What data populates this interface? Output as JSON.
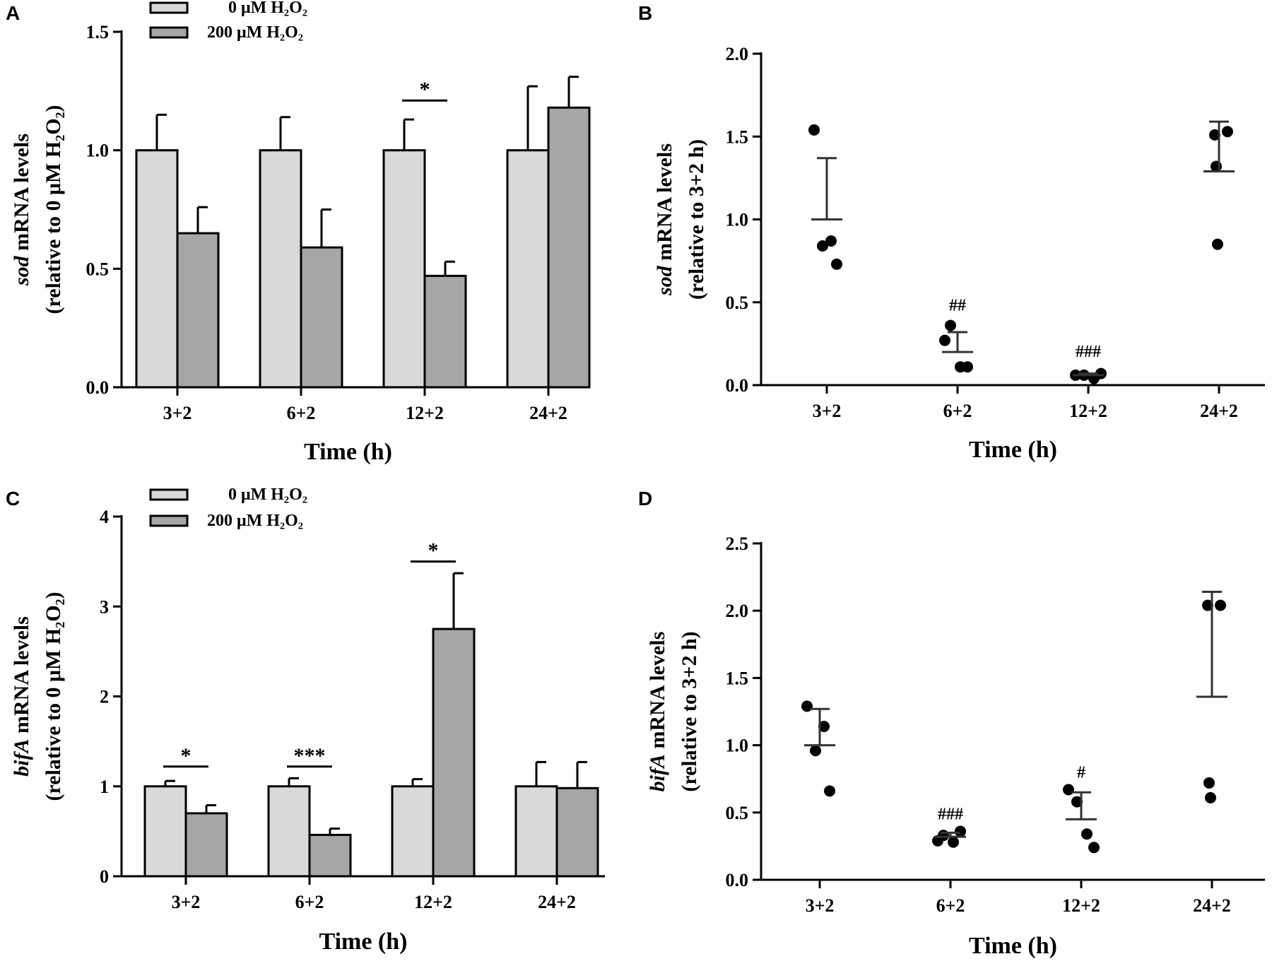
{
  "colors": {
    "control_bar": "#d9d9d9",
    "treated_bar": "#a6a6a8",
    "axis": "#000000",
    "dot": "#000000",
    "errorbar_sd": "#333333"
  },
  "chart_data": [
    {
      "panel": "A",
      "type": "bar",
      "gene": "sod",
      "ylabel_suffix": " mRNA levels",
      "ylabel_line2": "(relative to 0 μM H₂O₂)",
      "xlabel": "Time (h)",
      "categories": [
        "3+2",
        "6+2",
        "12+2",
        "24+2"
      ],
      "ylim": [
        0,
        1.5
      ],
      "yticks": [
        "0.0",
        "0.5",
        "1.0",
        "1.5"
      ],
      "ytick_values": [
        0,
        0.5,
        1.0,
        1.5
      ],
      "series": [
        {
          "name": "0 μM H₂O₂",
          "key": "control",
          "values": [
            1.0,
            1.0,
            1.0,
            1.0
          ],
          "err_top": [
            1.15,
            1.14,
            1.13,
            1.27
          ]
        },
        {
          "name": "200 μM H₂O₂",
          "key": "treated",
          "values": [
            0.65,
            0.59,
            0.47,
            1.18
          ],
          "err_top": [
            0.76,
            0.75,
            0.53,
            1.31
          ]
        }
      ],
      "legend": [
        "0 μM H₂O₂",
        "200 μM H₂O₂"
      ],
      "significance": [
        {
          "category_index": 2,
          "label": "*",
          "y": 1.21
        }
      ]
    },
    {
      "panel": "B",
      "type": "scatter",
      "gene": "sod",
      "ylabel_suffix": " mRNA levels",
      "ylabel_line2": "(relative to 3+2 h)",
      "xlabel": "Time (h)",
      "categories": [
        "3+2",
        "6+2",
        "12+2",
        "24+2"
      ],
      "ylim": [
        0,
        2.0
      ],
      "yticks": [
        "0.0",
        "0.5",
        "1.0",
        "1.5",
        "2.0"
      ],
      "ytick_values": [
        0,
        0.5,
        1.0,
        1.5,
        2.0
      ],
      "points": [
        [
          1.54,
          0.87,
          0.84,
          0.73
        ],
        [
          0.36,
          0.27,
          0.11,
          0.11
        ],
        [
          0.06,
          0.06,
          0.04,
          0.07
        ],
        [
          1.53,
          1.51,
          1.32,
          0.85
        ]
      ],
      "means": [
        1.0,
        0.2,
        0.06,
        1.29
      ],
      "err_top": [
        1.37,
        0.32,
        0.07,
        1.59
      ],
      "annotations": [
        {
          "category_index": 1,
          "label": "##",
          "y": 0.45
        },
        {
          "category_index": 2,
          "label": "###",
          "y": 0.17
        }
      ]
    },
    {
      "panel": "C",
      "type": "bar",
      "gene": "bifA",
      "ylabel_suffix": " mRNA levels",
      "ylabel_line2": "(relative to 0 μM H₂O₂)",
      "xlabel": "Time (h)",
      "categories": [
        "3+2",
        "6+2",
        "12+2",
        "24+2"
      ],
      "ylim": [
        0,
        4
      ],
      "yticks": [
        "0",
        "1",
        "2",
        "3",
        "4"
      ],
      "ytick_values": [
        0,
        1,
        2,
        3,
        4
      ],
      "series": [
        {
          "name": "0 μM H₂O₂",
          "key": "control",
          "values": [
            1.0,
            1.0,
            1.0,
            1.0
          ],
          "err_top": [
            1.06,
            1.09,
            1.08,
            1.27
          ]
        },
        {
          "name": "200 μM H₂O₂",
          "key": "treated",
          "values": [
            0.7,
            0.46,
            2.75,
            0.98
          ],
          "err_top": [
            0.79,
            0.53,
            3.37,
            1.27
          ]
        }
      ],
      "legend": [
        "0 μM H₂O₂",
        "200 μM H₂O₂"
      ],
      "significance": [
        {
          "category_index": 0,
          "label": "*",
          "y": 1.22
        },
        {
          "category_index": 1,
          "label": "***",
          "y": 1.22
        },
        {
          "category_index": 2,
          "label": "*",
          "y": 3.5
        }
      ]
    },
    {
      "panel": "D",
      "type": "scatter",
      "gene": "bifA",
      "ylabel_suffix": " mRNA levels",
      "ylabel_line2": "(relative to 3+2 h)",
      "xlabel": "Time (h)",
      "categories": [
        "3+2",
        "6+2",
        "12+2",
        "24+2"
      ],
      "ylim": [
        0,
        2.5
      ],
      "yticks": [
        "0.0",
        "0.5",
        "1.0",
        "1.5",
        "2.0",
        "2.5"
      ],
      "ytick_values": [
        0,
        0.5,
        1.0,
        1.5,
        2.0,
        2.5
      ],
      "points": [
        [
          1.29,
          1.14,
          0.96,
          0.66
        ],
        [
          0.33,
          0.29,
          0.28,
          0.36
        ],
        [
          0.67,
          0.58,
          0.34,
          0.24
        ],
        [
          2.04,
          2.04,
          0.72,
          0.61
        ]
      ],
      "means": [
        1.0,
        0.32,
        0.45,
        1.36
      ],
      "err_top": [
        1.27,
        0.35,
        0.65,
        2.14
      ],
      "annotations": [
        {
          "category_index": 1,
          "label": "###",
          "y": 0.45
        },
        {
          "category_index": 2,
          "label": "#",
          "y": 0.76
        }
      ]
    }
  ]
}
